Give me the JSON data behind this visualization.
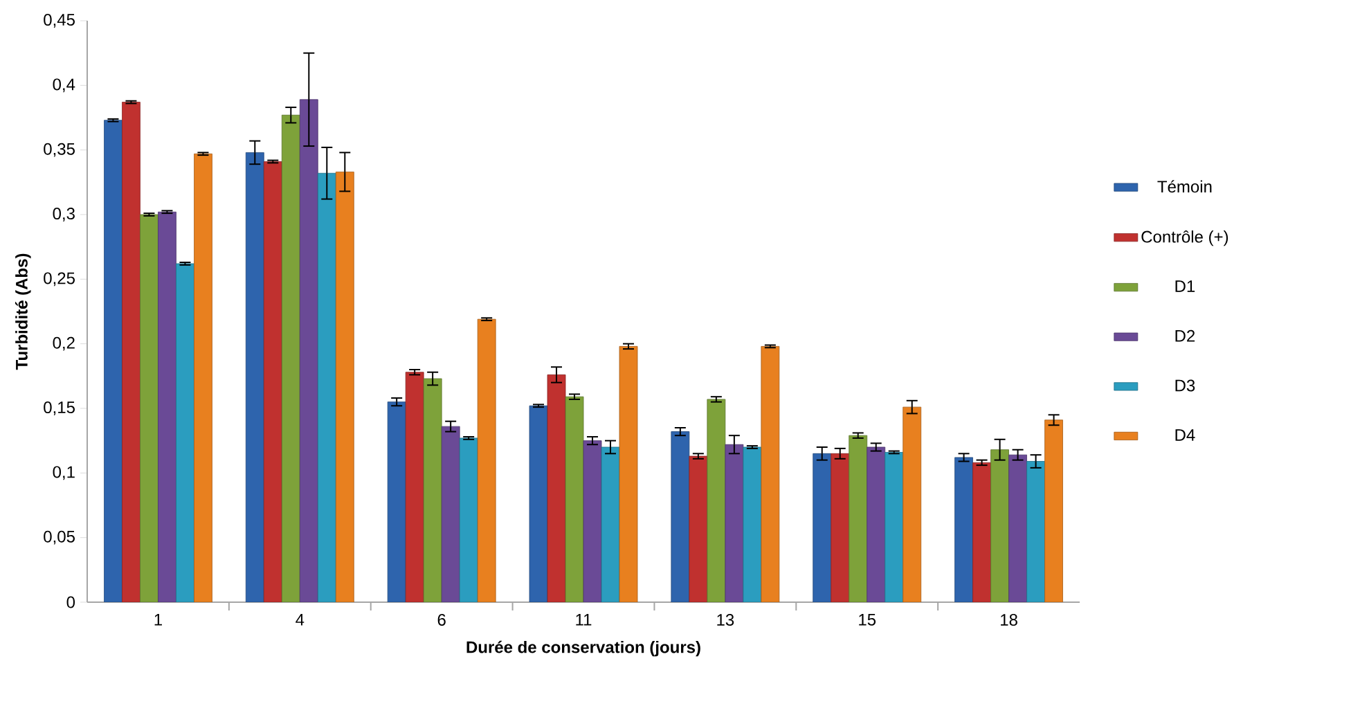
{
  "chart_data": {
    "type": "bar",
    "xlabel": "Durée de conservation (jours)",
    "ylabel": "Turbidité (Abs)",
    "categories": [
      "1",
      "4",
      "6",
      "11",
      "13",
      "15",
      "18"
    ],
    "series": [
      {
        "name": "Témoin",
        "color": "#2e64ad",
        "values": [
          0.373,
          0.348,
          0.155,
          0.152,
          0.132,
          0.115,
          0.112
        ],
        "errors": [
          0.001,
          0.009,
          0.003,
          0.001,
          0.003,
          0.005,
          0.003
        ]
      },
      {
        "name": "Contrôle (+)",
        "color": "#c0312f",
        "values": [
          0.387,
          0.341,
          0.178,
          0.176,
          0.113,
          0.115,
          0.108
        ],
        "errors": [
          0.001,
          0.001,
          0.002,
          0.006,
          0.002,
          0.004,
          0.002
        ]
      },
      {
        "name": "D1",
        "color": "#7ea23a",
        "values": [
          0.3,
          0.377,
          0.173,
          0.159,
          0.157,
          0.129,
          0.118
        ],
        "errors": [
          0.001,
          0.006,
          0.005,
          0.002,
          0.002,
          0.002,
          0.008
        ]
      },
      {
        "name": "D2",
        "color": "#6a4a96",
        "values": [
          0.302,
          0.389,
          0.136,
          0.125,
          0.122,
          0.12,
          0.114
        ],
        "errors": [
          0.001,
          0.036,
          0.004,
          0.003,
          0.007,
          0.003,
          0.004
        ]
      },
      {
        "name": "D3",
        "color": "#2b9dbf",
        "values": [
          0.262,
          0.332,
          0.127,
          0.12,
          0.12,
          0.116,
          0.109
        ],
        "errors": [
          0.001,
          0.02,
          0.001,
          0.005,
          0.001,
          0.001,
          0.005
        ]
      },
      {
        "name": "D4",
        "color": "#e8801f",
        "values": [
          0.347,
          0.333,
          0.219,
          0.198,
          0.198,
          0.151,
          0.141
        ],
        "errors": [
          0.001,
          0.015,
          0.001,
          0.002,
          0.001,
          0.005,
          0.004
        ]
      }
    ],
    "ylim": [
      0,
      0.45
    ],
    "yticks": [
      {
        "value": 0,
        "label": "0"
      },
      {
        "value": 0.05,
        "label": "0,05"
      },
      {
        "value": 0.1,
        "label": "0,1"
      },
      {
        "value": 0.15,
        "label": "0,15"
      },
      {
        "value": 0.2,
        "label": "0,2"
      },
      {
        "value": 0.25,
        "label": "0,25"
      },
      {
        "value": 0.3,
        "label": "0,3"
      },
      {
        "value": 0.35,
        "label": "0,35"
      },
      {
        "value": 0.4,
        "label": "0,4"
      },
      {
        "value": 0.45,
        "label": "0,45"
      }
    ],
    "grid": false,
    "legend": "right"
  }
}
